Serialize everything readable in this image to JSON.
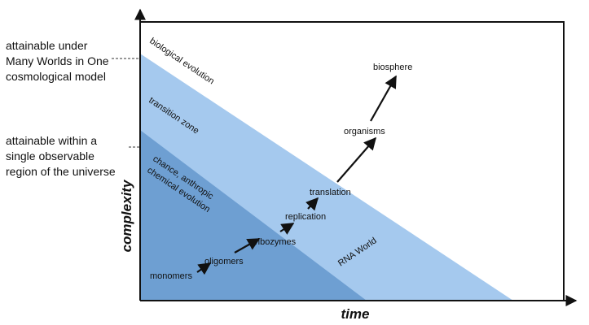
{
  "diagram": {
    "axes": {
      "x_label": "time",
      "y_label": "complexity"
    },
    "side_labels": {
      "upper": "attainable under\nMany Worlds in One\ncosmological model",
      "lower": "attainable within a\nsingle observable\nregion of the universe"
    },
    "region_labels": {
      "biological_evolution": "biological evolution",
      "transition_zone": "transition zone",
      "chemical_evolution_line1": "chance, anthropic",
      "chemical_evolution_line2": "chemical evolution",
      "rna_world": "RNA World"
    },
    "steps": [
      "monomers",
      "oligomers",
      "ribozymes",
      "replication",
      "translation",
      "organisms",
      "biosphere"
    ],
    "colors": {
      "light_region": "#a5c9ee",
      "dark_region": "#6e9fd2",
      "line": "#111111"
    }
  }
}
